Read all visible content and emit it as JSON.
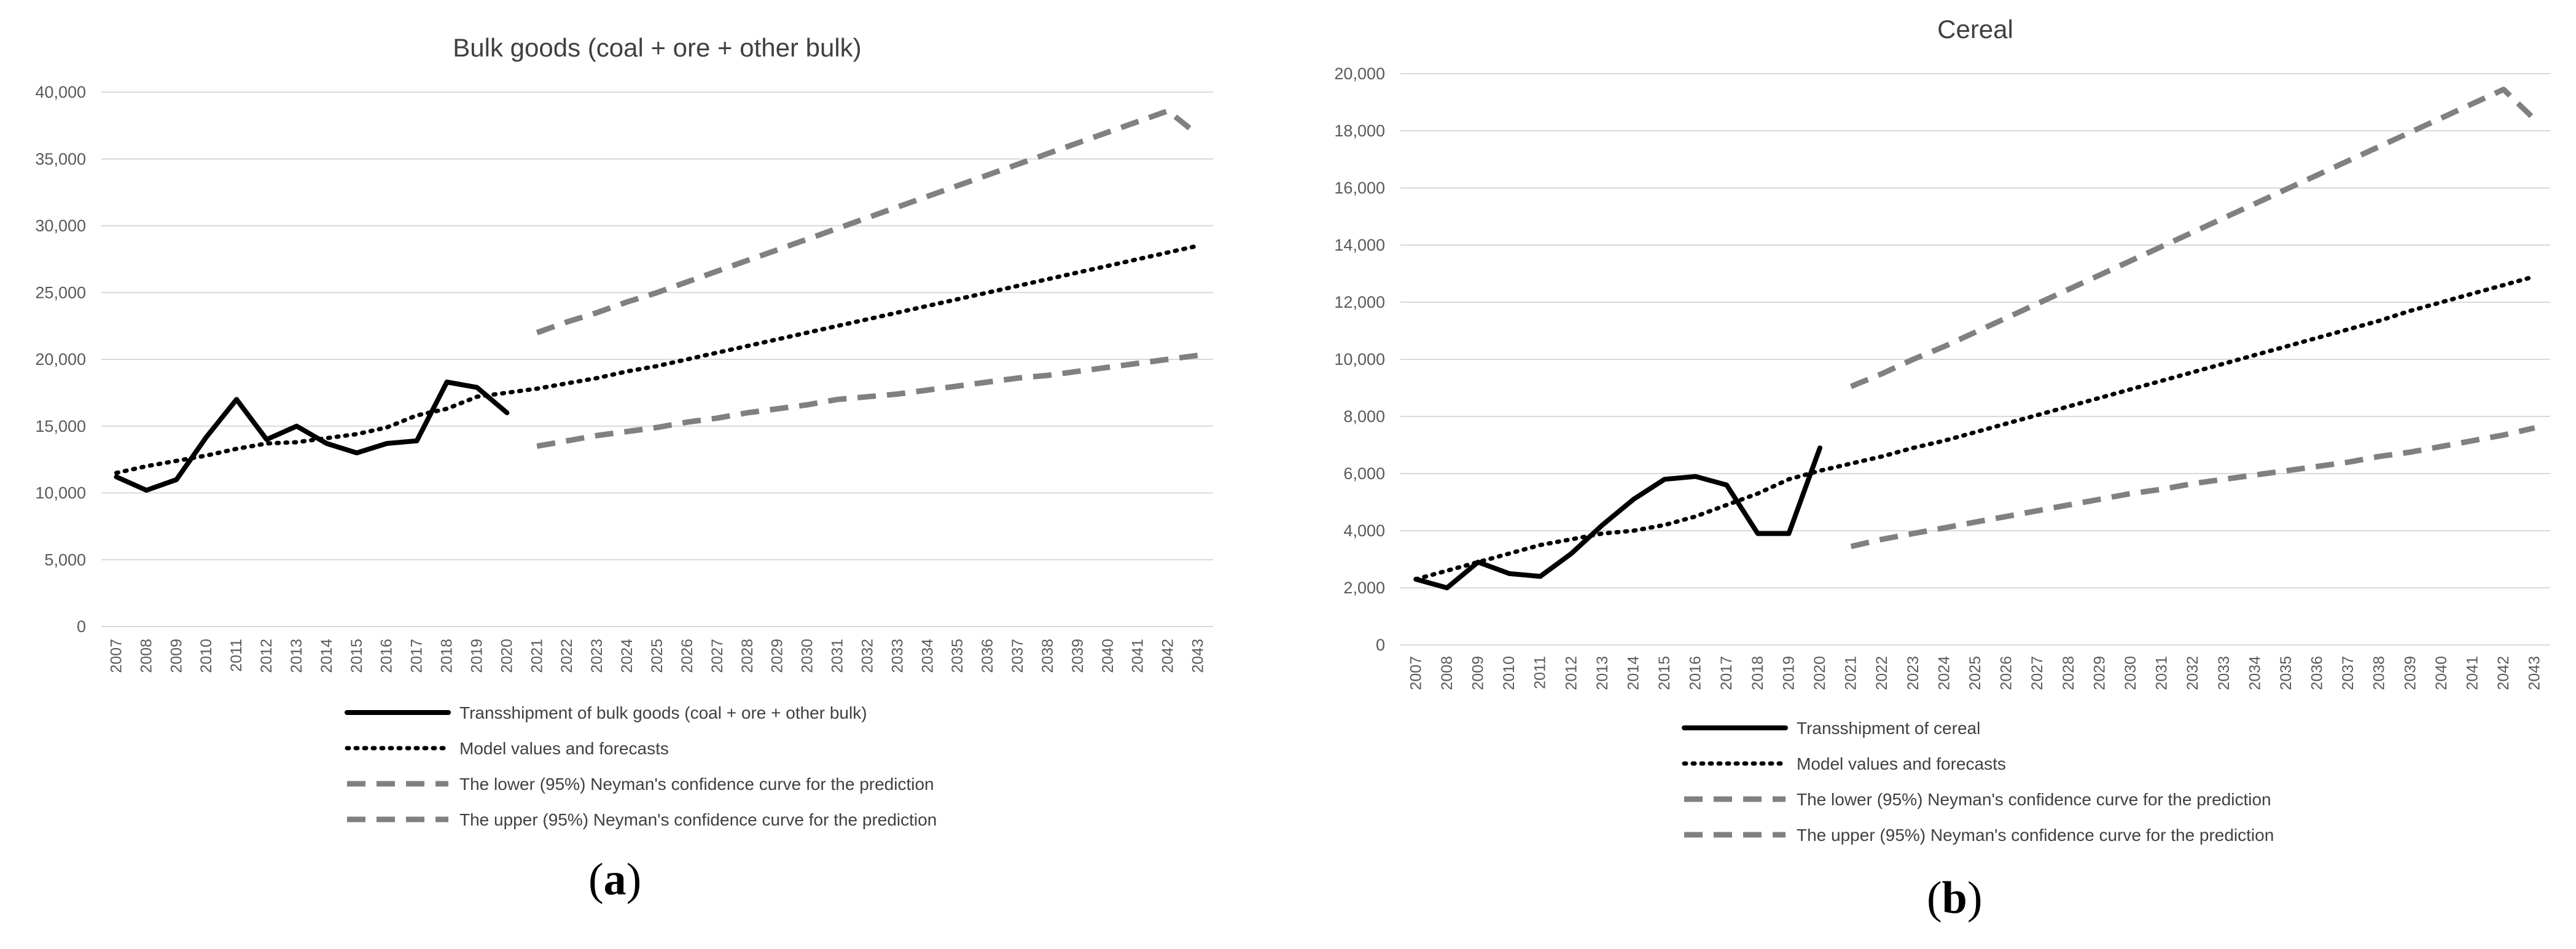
{
  "chart_data": [
    {
      "type": "line",
      "panel_label": "a",
      "title": "Bulk goods (coal + ore + other bulk)",
      "xlabel": "",
      "ylabel": "",
      "ylim": [
        0,
        40000
      ],
      "yticks": [
        0,
        5000,
        10000,
        15000,
        20000,
        25000,
        30000,
        35000,
        40000
      ],
      "ytick_labels": [
        "0",
        "5,000",
        "10,000",
        "15,000",
        "20,000",
        "25,000",
        "30,000",
        "35,000",
        "40,000"
      ],
      "categories": [
        "2007",
        "2008",
        "2009",
        "2010",
        "2011",
        "2012",
        "2013",
        "2014",
        "2015",
        "2016",
        "2017",
        "2018",
        "2019",
        "2020",
        "2021",
        "2022",
        "2023",
        "2024",
        "2025",
        "2026",
        "2027",
        "2028",
        "2029",
        "2030",
        "2031",
        "2032",
        "2033",
        "2034",
        "2035",
        "2036",
        "2037",
        "2038",
        "2039",
        "2040",
        "2041",
        "2042",
        "2043"
      ],
      "grid": true,
      "legend_position": "bottom",
      "series": [
        {
          "name": "Transshipment of bulk goods (coal + ore + other bulk)",
          "style": "solid",
          "color": "#000000",
          "values": [
            11200,
            10200,
            11000,
            14200,
            17000,
            14000,
            15000,
            13700,
            13000,
            13700,
            13900,
            18300,
            17900,
            16000,
            null,
            null,
            null,
            null,
            null,
            null,
            null,
            null,
            null,
            null,
            null,
            null,
            null,
            null,
            null,
            null,
            null,
            null,
            null,
            null,
            null,
            null,
            null
          ]
        },
        {
          "name": "Model values and forecasts",
          "style": "dotted",
          "color": "#000000",
          "values": [
            11500,
            12000,
            12400,
            12800,
            13300,
            13700,
            13800,
            14100,
            14400,
            14900,
            15800,
            16300,
            17200,
            17500,
            17800,
            18200,
            18600,
            19100,
            19500,
            20000,
            20500,
            21000,
            21500,
            22000,
            22500,
            23000,
            23500,
            24000,
            24500,
            25000,
            25500,
            26000,
            26500,
            27000,
            27500,
            28000,
            28500
          ]
        },
        {
          "name": "The lower (95%) Neyman's confidence curve for the prediction",
          "style": "dashed",
          "color": "#808080",
          "values": [
            null,
            null,
            null,
            null,
            null,
            null,
            null,
            null,
            null,
            null,
            null,
            null,
            null,
            null,
            13500,
            13900,
            14300,
            14600,
            14900,
            15300,
            15600,
            16000,
            16300,
            16600,
            17000,
            17200,
            17400,
            17700,
            18000,
            18300,
            18600,
            18800,
            19100,
            19400,
            19700,
            20000,
            20300
          ]
        },
        {
          "name": "The upper (95%) Neyman's confidence curve for the prediction",
          "style": "dashed",
          "color": "#808080",
          "values": [
            null,
            null,
            null,
            null,
            null,
            null,
            null,
            null,
            null,
            null,
            null,
            null,
            null,
            null,
            22000,
            22800,
            23500,
            24300,
            25000,
            25800,
            26600,
            27400,
            28200,
            29000,
            29800,
            30600,
            31400,
            32200,
            33000,
            33800,
            34600,
            35400,
            36200,
            37000,
            37800,
            38600,
            36800
          ]
        }
      ]
    },
    {
      "type": "line",
      "panel_label": "b",
      "title": "Cereal",
      "xlabel": "",
      "ylabel": "",
      "ylim": [
        0,
        20000
      ],
      "yticks": [
        0,
        2000,
        4000,
        6000,
        8000,
        10000,
        12000,
        14000,
        16000,
        18000,
        20000
      ],
      "ytick_labels": [
        "0",
        "2,000",
        "4,000",
        "6,000",
        "8,000",
        "10,000",
        "12,000",
        "14,000",
        "16,000",
        "18,000",
        "20,000"
      ],
      "categories": [
        "2007",
        "2008",
        "2009",
        "2010",
        "2011",
        "2012",
        "2013",
        "2014",
        "2015",
        "2016",
        "2017",
        "2018",
        "2019",
        "2020",
        "2021",
        "2022",
        "2023",
        "2024",
        "2025",
        "2026",
        "2027",
        "2028",
        "2029",
        "2030",
        "2031",
        "2032",
        "2033",
        "2034",
        "2035",
        "2036",
        "2037",
        "2038",
        "2039",
        "2040",
        "2041",
        "2042",
        "2043"
      ],
      "grid": true,
      "legend_position": "bottom",
      "series": [
        {
          "name": "Transshipment of cereal",
          "style": "solid",
          "color": "#000000",
          "values": [
            2300,
            2000,
            2900,
            2500,
            2400,
            3200,
            4200,
            5100,
            5800,
            5900,
            5600,
            3900,
            3900,
            6900,
            null,
            null,
            null,
            null,
            null,
            null,
            null,
            null,
            null,
            null,
            null,
            null,
            null,
            null,
            null,
            null,
            null,
            null,
            null,
            null,
            null,
            null,
            null
          ]
        },
        {
          "name": "Model values and forecasts",
          "style": "dotted",
          "color": "#000000",
          "values": [
            2300,
            2600,
            2900,
            3200,
            3500,
            3700,
            3900,
            4000,
            4200,
            4500,
            4900,
            5300,
            5800,
            6100,
            6350,
            6600,
            6900,
            7150,
            7450,
            7750,
            8050,
            8350,
            8650,
            8950,
            9250,
            9550,
            9850,
            10150,
            10450,
            10750,
            11050,
            11350,
            11700,
            12000,
            12300,
            12600,
            12900
          ]
        },
        {
          "name": "The lower (95%) Neyman's confidence curve for the prediction",
          "style": "dashed",
          "color": "#808080",
          "values": [
            null,
            null,
            null,
            null,
            null,
            null,
            null,
            null,
            null,
            null,
            null,
            null,
            null,
            null,
            3450,
            3700,
            3900,
            4100,
            4300,
            4500,
            4700,
            4900,
            5100,
            5300,
            5450,
            5650,
            5800,
            5950,
            6100,
            6250,
            6400,
            6600,
            6750,
            6950,
            7150,
            7350,
            7600
          ]
        },
        {
          "name": "The upper (95%) Neyman's confidence curve for the prediction",
          "style": "dashed",
          "color": "#808080",
          "values": [
            null,
            null,
            null,
            null,
            null,
            null,
            null,
            null,
            null,
            null,
            null,
            null,
            null,
            null,
            9050,
            9500,
            10000,
            10450,
            10950,
            11450,
            11950,
            12450,
            12950,
            13450,
            13950,
            14450,
            14950,
            15450,
            15950,
            16450,
            16950,
            17450,
            17950,
            18450,
            18950,
            19450,
            18400
          ]
        }
      ]
    }
  ]
}
